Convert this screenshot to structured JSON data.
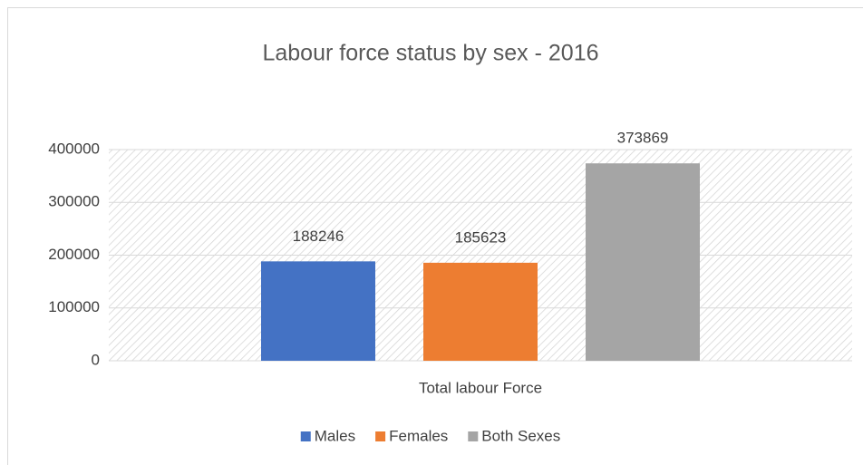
{
  "chart_data": {
    "type": "bar",
    "title": "Labour force status by sex - 2016",
    "categories": [
      "Total labour Force"
    ],
    "series": [
      {
        "name": "Males",
        "color": "#4472c4",
        "values": [
          188246
        ]
      },
      {
        "name": "Females",
        "color": "#ed7d31",
        "values": [
          185623
        ]
      },
      {
        "name": "Both Sexes",
        "color": "#a5a5a5",
        "values": [
          373869
        ]
      }
    ],
    "ylim": [
      0,
      400000
    ],
    "yticks": [
      0,
      100000,
      200000,
      300000,
      400000
    ],
    "grid": true,
    "legend": "bottom"
  }
}
